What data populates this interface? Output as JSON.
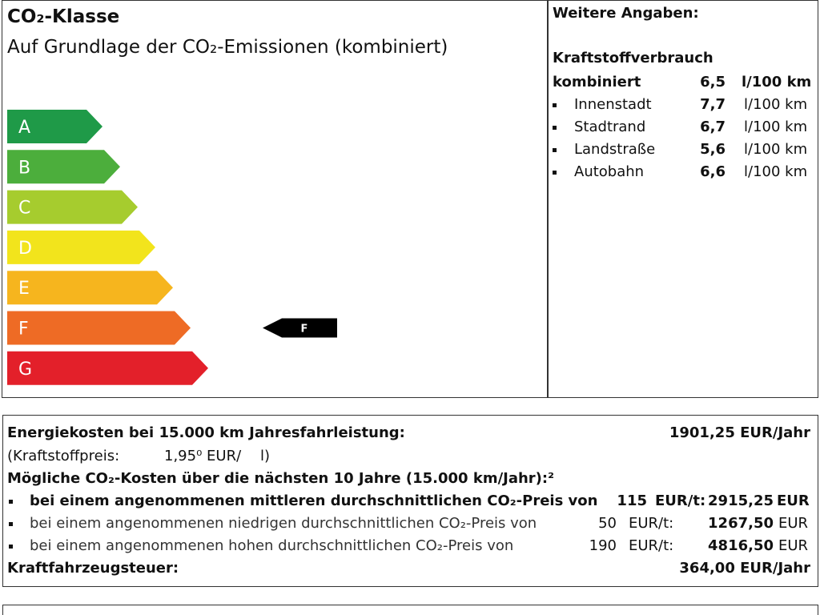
{
  "header": {
    "title": "CO₂-Klasse",
    "subtitle": "Auf Grundlage der CO₂-Emissionen (kombiniert)"
  },
  "classes": [
    {
      "label": "A",
      "color": "#1f9a48"
    },
    {
      "label": "B",
      "color": "#4cae3c"
    },
    {
      "label": "C",
      "color": "#a6cc2e"
    },
    {
      "label": "D",
      "color": "#f2e41c"
    },
    {
      "label": "E",
      "color": "#f6b51e"
    },
    {
      "label": "F",
      "color": "#ee6b25"
    },
    {
      "label": "G",
      "color": "#e3202a"
    }
  ],
  "current_class": {
    "label": "F",
    "index": 5
  },
  "details": {
    "heading": "Weitere Angaben:",
    "subheading": "Kraftstoffverbrauch",
    "rows": [
      {
        "label": "kombiniert",
        "value": "6,5",
        "unit": "l/100 km",
        "bold": true
      },
      {
        "label": "Innenstadt",
        "value": "7,7",
        "unit": "l/100 km",
        "bold": false
      },
      {
        "label": "Stadtrand",
        "value": "6,7",
        "unit": "l/100 km",
        "bold": false
      },
      {
        "label": "Landstraße",
        "value": "5,6",
        "unit": "l/100 km",
        "bold": false
      },
      {
        "label": "Autobahn",
        "value": "6,6",
        "unit": "l/100 km",
        "bold": false
      }
    ]
  },
  "costs": {
    "energy": {
      "label": "Energiekosten bei 15.000 km Jahresfahrleistung:",
      "value": "1901,25 EUR/Jahr"
    },
    "fuel_price": {
      "label": "(Kraftstoffpreis:",
      "value": "1,95⁰ EUR/",
      "unit": "l)"
    },
    "co2_heading": "Mögliche CO₂-Kosten über die nächsten 10 Jahre (15.000 km/Jahr):²",
    "co2_rows": [
      {
        "text": "bei einem angenommenen mittleren durchschnittlichen CO₂-Preis von",
        "price": "115",
        "unit": "EUR/t:",
        "amount": "2915,25",
        "currency": "EUR",
        "bold": true
      },
      {
        "text": "bei einem angenommenen niedrigen durchschnittlichen CO₂-Preis von",
        "price": "50",
        "unit": "EUR/t:",
        "amount": "1267,50",
        "currency": "EUR",
        "bold": false
      },
      {
        "text": "bei einem angenommenen hohen durchschnittlichen CO₂-Preis von",
        "price": "190",
        "unit": "EUR/t:",
        "amount": "4816,50",
        "currency": "EUR",
        "bold": false
      }
    ],
    "tax": {
      "label": "Kraftfahrzeugsteuer:",
      "value": "364,00 EUR/Jahr"
    }
  }
}
